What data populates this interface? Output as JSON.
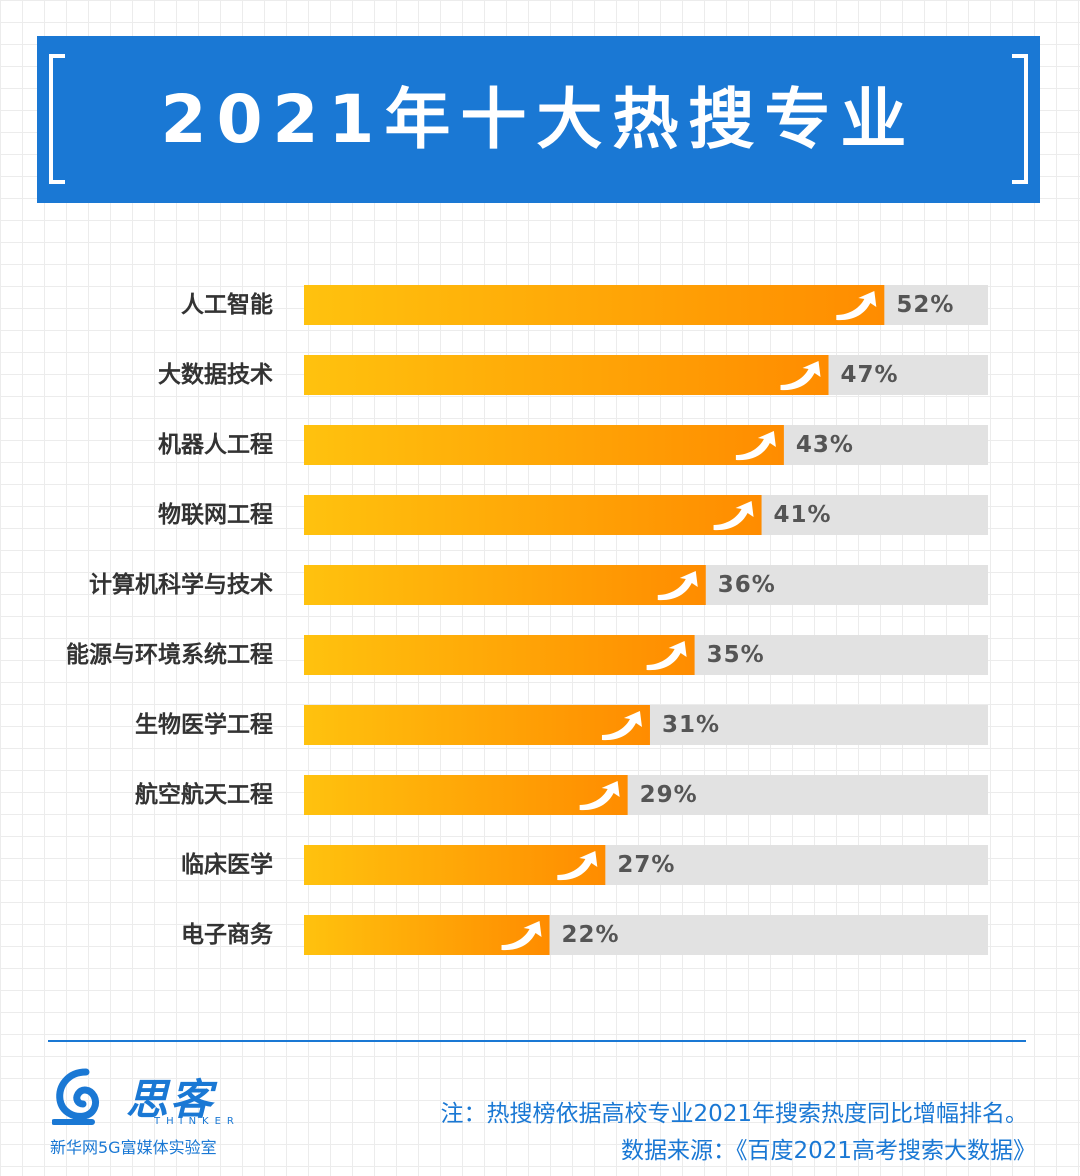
{
  "title": "2021年十大热搜专业",
  "chart_data": {
    "type": "bar",
    "orientation": "horizontal",
    "categories": [
      "人工智能",
      "大数据技术",
      "机器人工程",
      "物联网工程",
      "计算机科学与技术",
      "能源与环境系统工程",
      "生物医学工程",
      "航空航天工程",
      "临床医学",
      "电子商务"
    ],
    "values": [
      52,
      47,
      43,
      41,
      36,
      35,
      31,
      29,
      27,
      22
    ],
    "value_labels": [
      "52%",
      "47%",
      "43%",
      "41%",
      "36%",
      "35%",
      "31%",
      "29%",
      "27%",
      "22%"
    ],
    "value_unit": "%",
    "xlim": [
      0,
      100
    ],
    "colors": {
      "bar_start": "#ffc20e",
      "bar_end": "#ff8c00",
      "track": "#e2e2e2",
      "label": "#333333",
      "value_text": "#555555"
    }
  },
  "footer": {
    "logo_name": "思客",
    "logo_en": "THINKER",
    "logo_sub": "新华网5G富媒体实验室",
    "note": "注：热搜榜依据高校专业2021年搜索热度同比增幅排名。",
    "source": "数据来源：《百度2021高考搜索大数据》"
  },
  "colors": {
    "accent": "#1a78d4",
    "grid": "#ececec"
  },
  "icons": {
    "bar_marker": "trend-up-arrow-icon"
  }
}
